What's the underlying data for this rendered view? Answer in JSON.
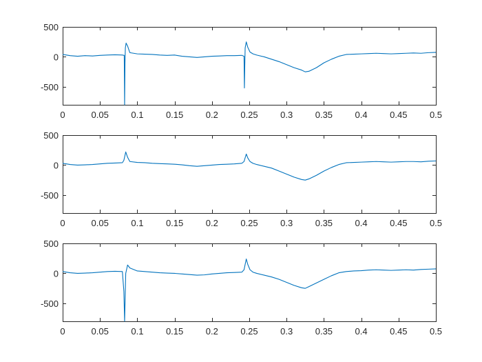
{
  "chart_data": [
    {
      "type": "line",
      "xlim": [
        0,
        0.5
      ],
      "ylim": [
        -800,
        500
      ],
      "xticks": [
        "0",
        "0.05",
        "0.1",
        "0.15",
        "0.2",
        "0.25",
        "0.3",
        "0.35",
        "0.4",
        "0.45",
        "0.5"
      ],
      "yticks": [
        "500",
        "0",
        "-500"
      ],
      "grid": false,
      "color": "#0072BD",
      "series": [
        {
          "x": [
            0,
            0.01,
            0.02,
            0.03,
            0.04,
            0.05,
            0.06,
            0.07,
            0.08,
            0.0825,
            0.083,
            0.0835,
            0.084,
            0.085,
            0.087,
            0.09,
            0.1,
            0.11,
            0.12,
            0.13,
            0.14,
            0.15,
            0.16,
            0.17,
            0.18,
            0.19,
            0.2,
            0.21,
            0.22,
            0.23,
            0.24,
            0.243,
            0.2435,
            0.244,
            0.2445,
            0.246,
            0.248,
            0.251,
            0.255,
            0.26,
            0.27,
            0.28,
            0.29,
            0.3,
            0.31,
            0.32,
            0.325,
            0.33,
            0.34,
            0.35,
            0.36,
            0.37,
            0.38,
            0.39,
            0.4,
            0.41,
            0.42,
            0.43,
            0.44,
            0.45,
            0.46,
            0.47,
            0.48,
            0.49,
            0.5
          ],
          "y": [
            40,
            20,
            10,
            20,
            15,
            25,
            30,
            35,
            30,
            25,
            -800,
            -100,
            150,
            230,
            180,
            70,
            50,
            45,
            40,
            30,
            25,
            30,
            10,
            0,
            -10,
            0,
            10,
            15,
            20,
            20,
            25,
            10,
            -520,
            -150,
            150,
            250,
            160,
            80,
            50,
            30,
            0,
            -40,
            -80,
            -130,
            -180,
            -220,
            -250,
            -240,
            -180,
            -100,
            -40,
            10,
            40,
            45,
            50,
            55,
            60,
            55,
            50,
            55,
            60,
            65,
            60,
            70,
            75
          ]
        }
      ]
    },
    {
      "type": "line",
      "xlim": [
        0,
        0.5
      ],
      "ylim": [
        -800,
        500
      ],
      "xticks": [
        "0",
        "0.05",
        "0.1",
        "0.15",
        "0.2",
        "0.25",
        "0.3",
        "0.35",
        "0.4",
        "0.45",
        "0.5"
      ],
      "yticks": [
        "500",
        "0",
        "-500"
      ],
      "grid": false,
      "color": "#0072BD",
      "series": [
        {
          "x": [
            0,
            0.01,
            0.02,
            0.03,
            0.04,
            0.05,
            0.06,
            0.07,
            0.08,
            0.082,
            0.0845,
            0.087,
            0.09,
            0.1,
            0.11,
            0.12,
            0.13,
            0.14,
            0.15,
            0.16,
            0.17,
            0.18,
            0.19,
            0.2,
            0.21,
            0.22,
            0.23,
            0.24,
            0.243,
            0.246,
            0.248,
            0.251,
            0.255,
            0.26,
            0.27,
            0.28,
            0.29,
            0.3,
            0.31,
            0.32,
            0.325,
            0.33,
            0.34,
            0.35,
            0.36,
            0.37,
            0.38,
            0.39,
            0.4,
            0.41,
            0.42,
            0.43,
            0.44,
            0.45,
            0.46,
            0.47,
            0.48,
            0.49,
            0.5
          ],
          "y": [
            30,
            10,
            0,
            5,
            10,
            20,
            30,
            35,
            40,
            80,
            220,
            130,
            60,
            45,
            40,
            30,
            25,
            20,
            15,
            5,
            -10,
            -20,
            -10,
            0,
            10,
            15,
            20,
            30,
            60,
            185,
            120,
            60,
            30,
            10,
            -20,
            -50,
            -100,
            -150,
            -200,
            -240,
            -250,
            -230,
            -170,
            -100,
            -40,
            10,
            40,
            45,
            50,
            55,
            60,
            55,
            50,
            55,
            60,
            60,
            55,
            65,
            70
          ]
        }
      ]
    },
    {
      "type": "line",
      "xlim": [
        0,
        0.5
      ],
      "ylim": [
        -800,
        500
      ],
      "xticks": [
        "0",
        "0.05",
        "0.1",
        "0.15",
        "0.2",
        "0.25",
        "0.3",
        "0.35",
        "0.4",
        "0.45",
        "0.5"
      ],
      "yticks": [
        "500",
        "0",
        "-500"
      ],
      "grid": false,
      "color": "#0072BD",
      "series": [
        {
          "x": [
            0,
            0.01,
            0.02,
            0.03,
            0.04,
            0.05,
            0.06,
            0.07,
            0.08,
            0.082,
            0.083,
            0.0845,
            0.087,
            0.09,
            0.1,
            0.11,
            0.12,
            0.13,
            0.14,
            0.15,
            0.16,
            0.17,
            0.18,
            0.19,
            0.2,
            0.21,
            0.22,
            0.23,
            0.24,
            0.243,
            0.246,
            0.248,
            0.251,
            0.255,
            0.26,
            0.27,
            0.28,
            0.29,
            0.3,
            0.31,
            0.32,
            0.325,
            0.33,
            0.34,
            0.35,
            0.36,
            0.37,
            0.38,
            0.39,
            0.4,
            0.41,
            0.42,
            0.43,
            0.44,
            0.45,
            0.46,
            0.47,
            0.48,
            0.49,
            0.5
          ],
          "y": [
            30,
            10,
            0,
            5,
            10,
            20,
            30,
            35,
            30,
            -300,
            -800,
            0,
            140,
            90,
            40,
            30,
            20,
            10,
            5,
            0,
            -10,
            -20,
            -30,
            -25,
            -10,
            0,
            10,
            15,
            20,
            60,
            240,
            150,
            60,
            20,
            0,
            -30,
            -60,
            -100,
            -150,
            -200,
            -240,
            -250,
            -220,
            -160,
            -100,
            -40,
            10,
            30,
            40,
            45,
            55,
            60,
            55,
            50,
            55,
            60,
            55,
            65,
            70,
            75
          ]
        }
      ]
    }
  ]
}
